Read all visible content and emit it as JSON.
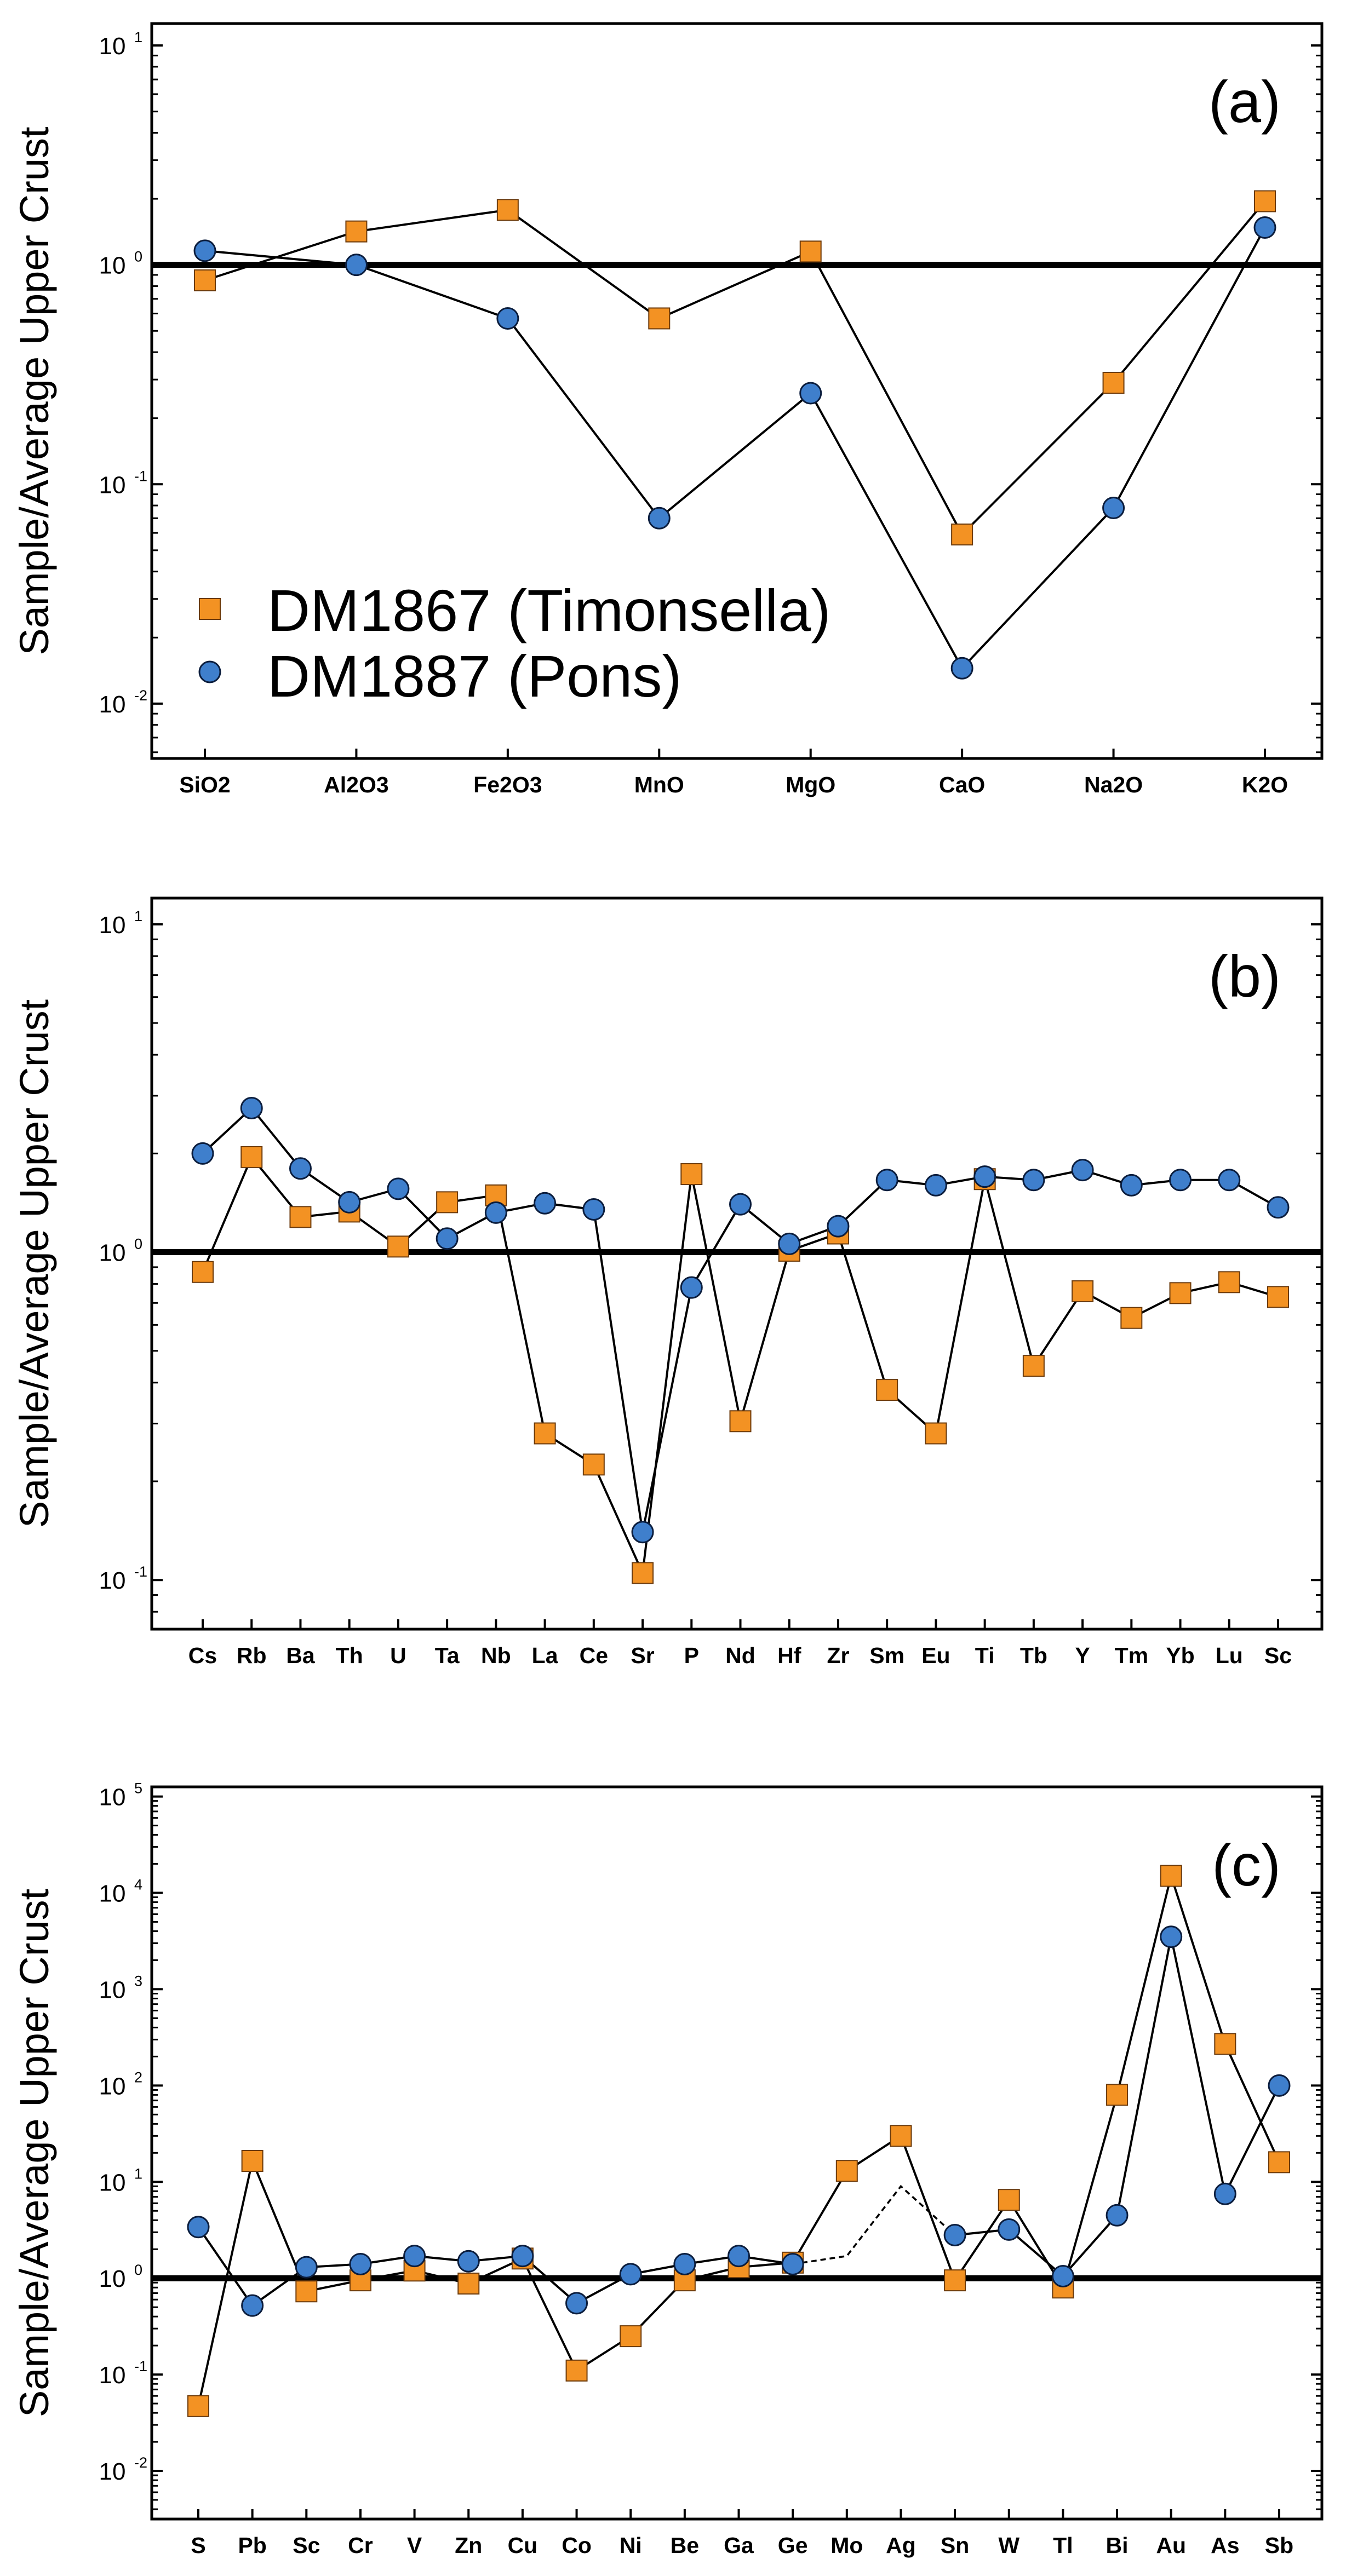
{
  "legend": {
    "series": [
      {
        "name": "DM1867 (Timonsella)",
        "marker": "square",
        "color": "#f39223"
      },
      {
        "name": "DM1887 (Pons)",
        "marker": "circle",
        "color": "#3f7fcc"
      }
    ]
  },
  "chart_data": [
    {
      "type": "line",
      "panel_label": "(a)",
      "ylabel": "Sample/Average Upper Crust",
      "yscale": "log",
      "ylim_exp": [
        -2.25,
        1.1
      ],
      "yticks": [
        {
          "base": "10",
          "exp": "1"
        },
        {
          "base": "10",
          "exp": "0"
        },
        {
          "base": "10",
          "exp": "-1"
        },
        {
          "base": "10",
          "exp": "-2"
        }
      ],
      "yticks_exp": [
        1,
        0,
        -1,
        -2
      ],
      "reference_line": 1,
      "categories": [
        "SiO2",
        "Al2O3",
        "Fe2O3",
        "MnO",
        "MgO",
        "CaO",
        "Na2O",
        "K2O"
      ],
      "series": [
        {
          "name": "DM1867 (Timonsella)",
          "values": [
            0.85,
            1.42,
            1.78,
            0.57,
            1.15,
            0.059,
            0.29,
            1.95
          ]
        },
        {
          "name": "DM1887 (Pons)",
          "values": [
            1.16,
            1.0,
            0.57,
            0.07,
            0.26,
            0.0145,
            0.078,
            1.48
          ]
        }
      ]
    },
    {
      "type": "line",
      "panel_label": "(b)",
      "ylabel": "Sample/Average Upper Crust",
      "yscale": "log",
      "ylim_exp": [
        -1.15,
        1.08
      ],
      "yticks": [
        {
          "base": "10",
          "exp": "1"
        },
        {
          "base": "10",
          "exp": "0"
        },
        {
          "base": "10",
          "exp": "-1"
        }
      ],
      "yticks_exp": [
        1,
        0,
        -1
      ],
      "reference_line": 1,
      "categories": [
        "Cs",
        "Rb",
        "Ba",
        "Th",
        "U",
        "Ta",
        "Nb",
        "La",
        "Ce",
        "Sr",
        "P",
        "Nd",
        "Hf",
        "Zr",
        "Sm",
        "Eu",
        "Ti",
        "Tb",
        "Y",
        "Tm",
        "Yb",
        "Lu",
        "Sc"
      ],
      "series": [
        {
          "name": "DM1867 (Timonsella)",
          "values": [
            0.87,
            1.95,
            1.28,
            1.33,
            1.04,
            1.42,
            1.49,
            0.28,
            0.225,
            0.105,
            1.73,
            0.305,
            1.01,
            1.14,
            0.38,
            0.28,
            1.67,
            0.45,
            0.76,
            0.63,
            0.75,
            0.81,
            0.73
          ]
        },
        {
          "name": "DM1887 (Pons)",
          "values": [
            2.0,
            2.75,
            1.8,
            1.42,
            1.56,
            1.1,
            1.32,
            1.41,
            1.35,
            0.14,
            0.78,
            1.4,
            1.06,
            1.2,
            1.66,
            1.6,
            1.7,
            1.66,
            1.78,
            1.6,
            1.66,
            1.66,
            1.37
          ]
        }
      ]
    },
    {
      "type": "line",
      "panel_label": "(c)",
      "ylabel": "Sample/Average Upper Crust",
      "yscale": "log",
      "ylim_exp": [
        -2.5,
        5.1
      ],
      "yticks": [
        {
          "base": "10",
          "exp": "5"
        },
        {
          "base": "10",
          "exp": "4"
        },
        {
          "base": "10",
          "exp": "3"
        },
        {
          "base": "10",
          "exp": "2"
        },
        {
          "base": "10",
          "exp": "1"
        },
        {
          "base": "10",
          "exp": "0"
        },
        {
          "base": "10",
          "exp": "-1"
        },
        {
          "base": "10",
          "exp": "-2"
        }
      ],
      "yticks_exp": [
        5,
        4,
        3,
        2,
        1,
        0,
        -1,
        -2
      ],
      "reference_line": 1,
      "categories": [
        "S",
        "Pb",
        "Sc",
        "Cr",
        "V",
        "Zn",
        "Cu",
        "Co",
        "Ni",
        "Be",
        "Ga",
        "Ge",
        "Mo",
        "Ag",
        "Sn",
        "W",
        "Tl",
        "Bi",
        "Au",
        "As",
        "Sb"
      ],
      "series": [
        {
          "name": "DM1867 (Timonsella)",
          "values": [
            0.047,
            16.5,
            0.73,
            0.95,
            1.2,
            0.88,
            1.6,
            0.11,
            0.25,
            0.95,
            1.3,
            1.45,
            13,
            30,
            0.95,
            6.5,
            0.8,
            80,
            15000,
            270,
            16
          ]
        },
        {
          "name": "DM1887 (Pons)",
          "values": [
            3.4,
            0.52,
            1.3,
            1.4,
            1.7,
            1.5,
            1.7,
            0.55,
            1.1,
            1.4,
            1.7,
            1.4,
            null,
            null,
            2.8,
            3.2,
            1.05,
            4.5,
            3500,
            7.5,
            100
          ]
        }
      ],
      "dashed_segment": {
        "categories": [
          "Ge",
          "Mo",
          "Ag",
          "Sn"
        ],
        "values": [
          1.4,
          1.7,
          9.0,
          2.8
        ]
      }
    }
  ]
}
